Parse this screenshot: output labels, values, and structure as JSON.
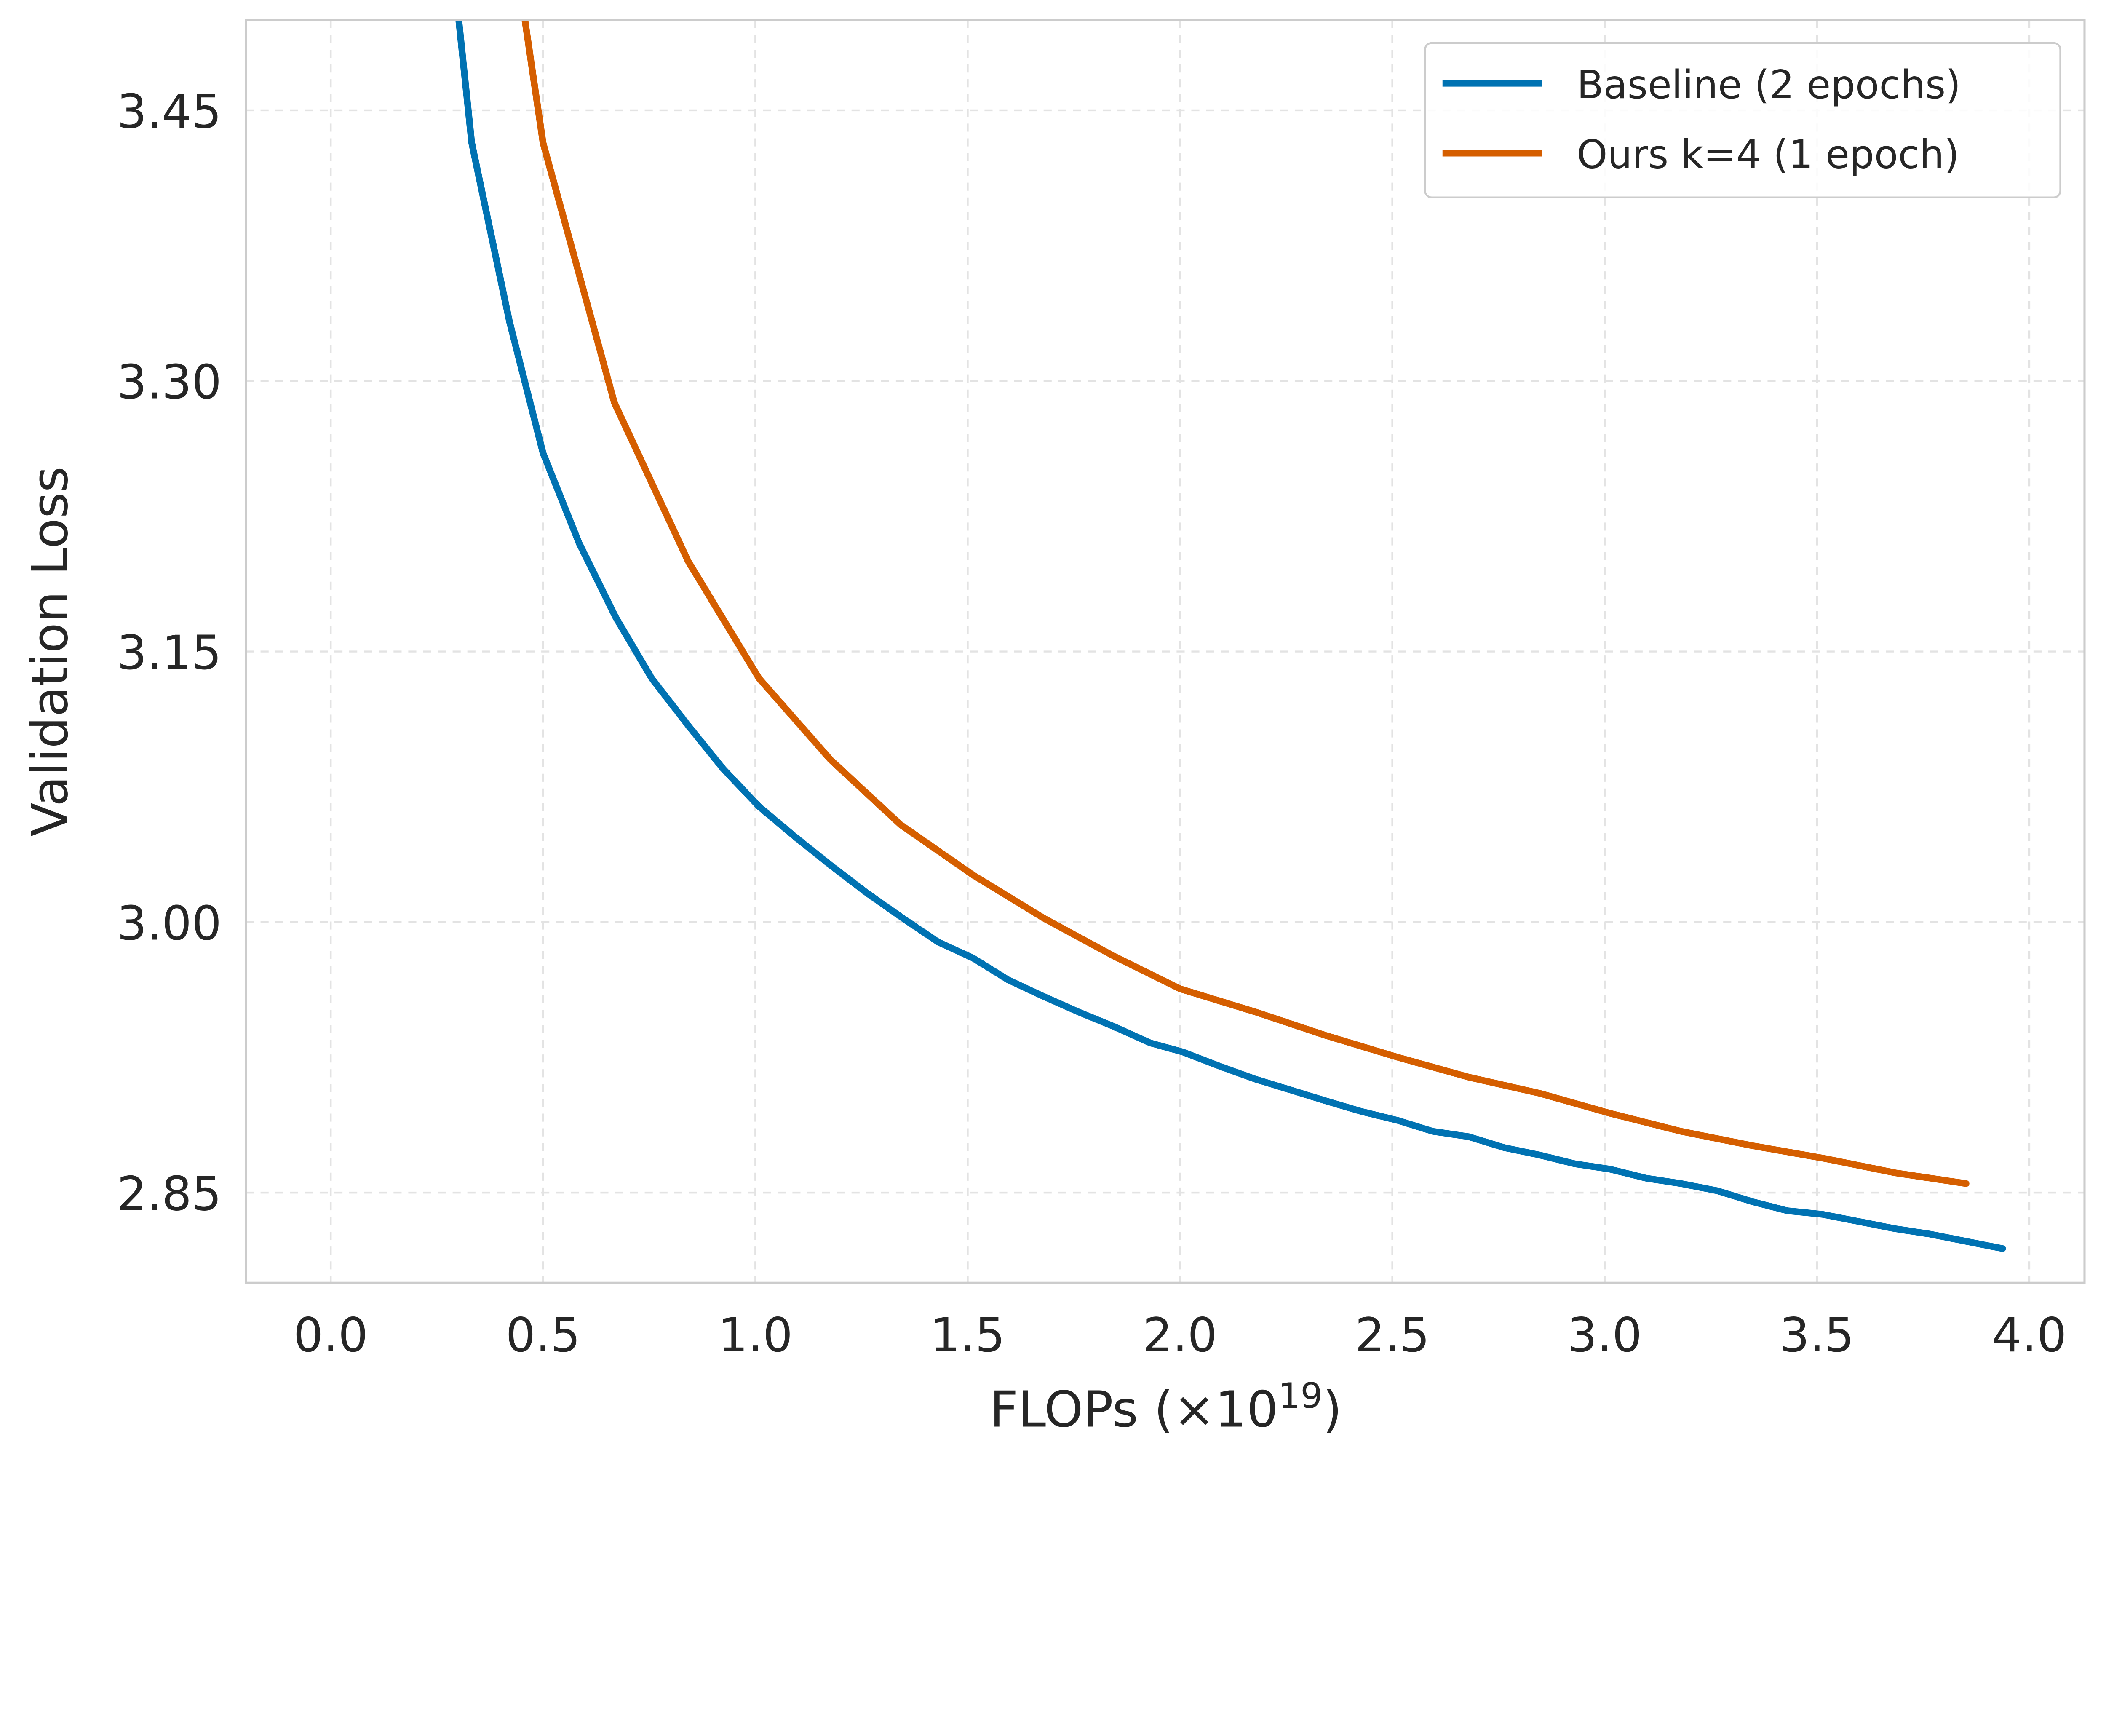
{
  "chart_data": {
    "type": "line",
    "title": "",
    "xlabel": "FLOPs (×10",
    "xlabel_exponent": "19",
    "xlabel_suffix": ")",
    "ylabel": "Validation Loss",
    "xlim": [
      -0.2,
      4.13
    ],
    "ylim": [
      2.8,
      3.5
    ],
    "xticks": [
      "0.0",
      "0.5",
      "1.0",
      "1.5",
      "2.0",
      "2.5",
      "3.0",
      "3.5",
      "4.0"
    ],
    "yticks": [
      "2.85",
      "3.00",
      "3.15",
      "3.30",
      "3.45"
    ],
    "grid": true,
    "legend_position": "top-right",
    "series": [
      {
        "name": "Baseline (2 epochs)",
        "color": "#0072b2",
        "x": [
          0.248,
          0.332,
          0.421,
          0.5,
          0.585,
          0.671,
          0.756,
          0.842,
          0.924,
          1.009,
          1.095,
          1.18,
          1.263,
          1.348,
          1.43,
          1.513,
          1.595,
          1.677,
          1.763,
          1.845,
          1.93,
          2.006,
          2.095,
          2.177,
          2.259,
          2.342,
          2.427,
          2.513,
          2.595,
          2.68,
          2.763,
          2.845,
          2.93,
          3.013,
          3.098,
          3.18,
          3.266,
          3.348,
          3.43,
          3.513,
          3.598,
          3.684,
          3.766,
          3.851,
          3.937
        ],
        "y": [
          3.62,
          3.432,
          3.333,
          3.26,
          3.21,
          3.169,
          3.135,
          3.109,
          3.085,
          3.064,
          3.047,
          3.031,
          3.016,
          3.002,
          2.989,
          2.98,
          2.968,
          2.959,
          2.95,
          2.942,
          2.933,
          2.928,
          2.92,
          2.913,
          2.907,
          2.901,
          2.895,
          2.89,
          2.884,
          2.881,
          2.875,
          2.871,
          2.866,
          2.863,
          2.858,
          2.855,
          2.851,
          2.845,
          2.84,
          2.838,
          2.834,
          2.83,
          2.827,
          2.823,
          2.819
        ]
      },
      {
        "name": "Ours k=4 (1 epoch)",
        "color": "#d55e00",
        "x": [
          0.332,
          0.5,
          0.668,
          0.842,
          1.009,
          1.177,
          1.342,
          1.513,
          1.68,
          1.845,
          2.0,
          2.18,
          2.345,
          2.513,
          2.68,
          2.848,
          3.013,
          3.18,
          3.348,
          3.516,
          3.684,
          3.851
        ],
        "y": [
          3.7,
          3.432,
          3.288,
          3.2,
          3.135,
          3.09,
          3.054,
          3.026,
          3.002,
          2.981,
          2.963,
          2.95,
          2.937,
          2.925,
          2.914,
          2.905,
          2.894,
          2.884,
          2.876,
          2.869,
          2.861,
          2.855
        ]
      }
    ]
  }
}
